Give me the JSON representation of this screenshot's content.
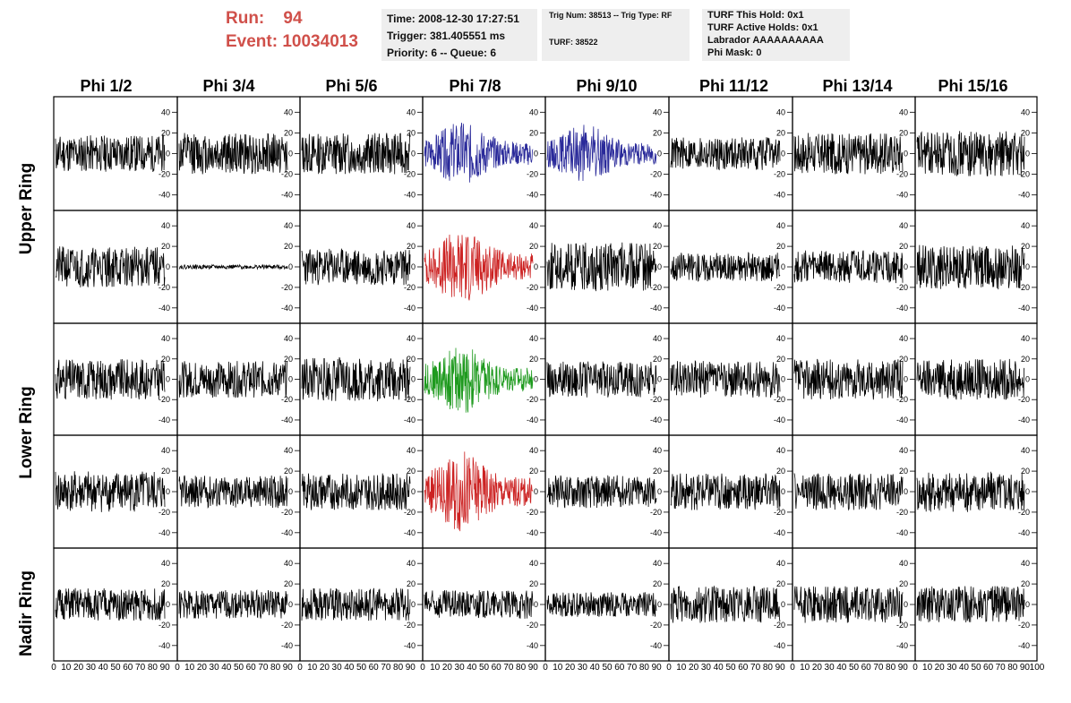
{
  "header": {
    "run_label": "Run:",
    "run_value": "94",
    "event_label": "Event:",
    "event_value": "10034013"
  },
  "info_time": {
    "time": "Time: 2008-12-30 17:27:51",
    "trigger": "Trigger: 381.405551 ms",
    "priority": "Priority: 6 -- Queue: 6"
  },
  "info_trig": {
    "trig": "Trig Num: 38513 -- Trig Type: RF",
    "turf": "TURF: 38522"
  },
  "info_turf": {
    "hold": "TURF This Hold: 0x1",
    "active": "TURF Active Holds: 0x1",
    "labrador": "Labrador AAAAAAAAAA",
    "phimask": "Phi Mask: 0"
  },
  "columns": [
    "Phi 1/2",
    "Phi 3/4",
    "Phi 5/6",
    "Phi 7/8",
    "Phi 9/10",
    "Phi 11/12",
    "Phi 13/14",
    "Phi 15/16"
  ],
  "row_labels": {
    "upper": "Upper Ring",
    "lower": "Lower Ring",
    "nadir": "Nadir Ring"
  },
  "colors": {
    "default_trace": "#000000",
    "blue_trace": "#2a2a9a",
    "red_trace": "#cc2222",
    "green_trace": "#1e9a1e",
    "run_text": "#d0504a"
  },
  "chart_data": {
    "type": "line",
    "description_rows": 5,
    "description_cols": 8,
    "ylim": [
      -55,
      55
    ],
    "y_ticks": [
      -40,
      -20,
      0,
      20,
      40
    ],
    "xlim": [
      0,
      100
    ],
    "x_ticks": [
      0,
      10,
      20,
      30,
      40,
      50,
      60,
      70,
      80,
      90,
      100
    ],
    "x_axis_tick_strip": "0 1020304050607080901​0",
    "panels": [
      {
        "row": 0,
        "col": 0,
        "amp": 18,
        "color": "default_trace",
        "seed": 11
      },
      {
        "row": 0,
        "col": 1,
        "amp": 20,
        "color": "default_trace",
        "seed": 12
      },
      {
        "row": 0,
        "col": 2,
        "amp": 20,
        "color": "default_trace",
        "seed": 13
      },
      {
        "row": 0,
        "col": 3,
        "amp": 22,
        "color": "blue_trace",
        "seed": 14,
        "burst": true
      },
      {
        "row": 0,
        "col": 4,
        "amp": 20,
        "color": "blue_trace",
        "seed": 15,
        "burst": true
      },
      {
        "row": 0,
        "col": 5,
        "amp": 16,
        "color": "default_trace",
        "seed": 16
      },
      {
        "row": 0,
        "col": 6,
        "amp": 20,
        "color": "default_trace",
        "seed": 17
      },
      {
        "row": 0,
        "col": 7,
        "amp": 22,
        "color": "default_trace",
        "seed": 18
      },
      {
        "row": 1,
        "col": 0,
        "amp": 20,
        "color": "default_trace",
        "seed": 21
      },
      {
        "row": 1,
        "col": 1,
        "amp": 2,
        "color": "default_trace",
        "seed": 22
      },
      {
        "row": 1,
        "col": 2,
        "amp": 18,
        "color": "default_trace",
        "seed": 23
      },
      {
        "row": 1,
        "col": 3,
        "amp": 26,
        "color": "red_trace",
        "seed": 24,
        "burst": true
      },
      {
        "row": 1,
        "col": 4,
        "amp": 24,
        "color": "default_trace",
        "seed": 25
      },
      {
        "row": 1,
        "col": 5,
        "amp": 14,
        "color": "default_trace",
        "seed": 26
      },
      {
        "row": 1,
        "col": 6,
        "amp": 16,
        "color": "default_trace",
        "seed": 27
      },
      {
        "row": 1,
        "col": 7,
        "amp": 22,
        "color": "default_trace",
        "seed": 28
      },
      {
        "row": 2,
        "col": 0,
        "amp": 20,
        "color": "default_trace",
        "seed": 31
      },
      {
        "row": 2,
        "col": 1,
        "amp": 18,
        "color": "default_trace",
        "seed": 32
      },
      {
        "row": 2,
        "col": 2,
        "amp": 22,
        "color": "default_trace",
        "seed": 33
      },
      {
        "row": 2,
        "col": 3,
        "amp": 24,
        "color": "green_trace",
        "seed": 34,
        "burst": true
      },
      {
        "row": 2,
        "col": 4,
        "amp": 18,
        "color": "default_trace",
        "seed": 35
      },
      {
        "row": 2,
        "col": 5,
        "amp": 18,
        "color": "default_trace",
        "seed": 36
      },
      {
        "row": 2,
        "col": 6,
        "amp": 20,
        "color": "default_trace",
        "seed": 37
      },
      {
        "row": 2,
        "col": 7,
        "amp": 20,
        "color": "default_trace",
        "seed": 38
      },
      {
        "row": 3,
        "col": 0,
        "amp": 20,
        "color": "default_trace",
        "seed": 41
      },
      {
        "row": 3,
        "col": 1,
        "amp": 16,
        "color": "default_trace",
        "seed": 42
      },
      {
        "row": 3,
        "col": 2,
        "amp": 18,
        "color": "default_trace",
        "seed": 43
      },
      {
        "row": 3,
        "col": 3,
        "amp": 28,
        "color": "red_trace",
        "seed": 44,
        "burst": true
      },
      {
        "row": 3,
        "col": 4,
        "amp": 16,
        "color": "default_trace",
        "seed": 45
      },
      {
        "row": 3,
        "col": 5,
        "amp": 18,
        "color": "default_trace",
        "seed": 46
      },
      {
        "row": 3,
        "col": 6,
        "amp": 18,
        "color": "default_trace",
        "seed": 47
      },
      {
        "row": 3,
        "col": 7,
        "amp": 20,
        "color": "default_trace",
        "seed": 48
      },
      {
        "row": 4,
        "col": 0,
        "amp": 16,
        "color": "default_trace",
        "seed": 51
      },
      {
        "row": 4,
        "col": 1,
        "amp": 14,
        "color": "default_trace",
        "seed": 52
      },
      {
        "row": 4,
        "col": 2,
        "amp": 16,
        "color": "default_trace",
        "seed": 53
      },
      {
        "row": 4,
        "col": 3,
        "amp": 14,
        "color": "default_trace",
        "seed": 54
      },
      {
        "row": 4,
        "col": 4,
        "amp": 12,
        "color": "default_trace",
        "seed": 55
      },
      {
        "row": 4,
        "col": 5,
        "amp": 18,
        "color": "default_trace",
        "seed": 56
      },
      {
        "row": 4,
        "col": 6,
        "amp": 18,
        "color": "default_trace",
        "seed": 57
      },
      {
        "row": 4,
        "col": 7,
        "amp": 18,
        "color": "default_trace",
        "seed": 58
      }
    ]
  }
}
